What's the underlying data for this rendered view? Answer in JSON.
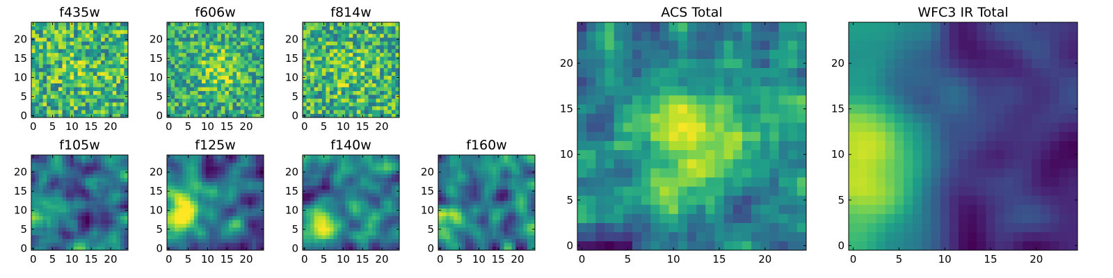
{
  "colormap": {
    "name": "viridis",
    "stops": [
      "#440154",
      "#482878",
      "#3e4989",
      "#31688e",
      "#26828e",
      "#1f9e89",
      "#35b779",
      "#6ece58",
      "#b5de2b",
      "#fde725"
    ]
  },
  "chart_data": [
    {
      "id": "f435w",
      "type": "heatmap",
      "title": "f435w",
      "grid": [
        25,
        25
      ],
      "xlim": [
        -0.5,
        24.5
      ],
      "ylim": [
        -0.5,
        24.5
      ],
      "xticks": [
        0,
        5,
        10,
        15,
        20
      ],
      "yticks": [
        0,
        5,
        10,
        15,
        20
      ],
      "pattern": "noise",
      "blob": [
        12,
        12
      ],
      "blob_strength": 0.15,
      "seed": 11
    },
    {
      "id": "f606w",
      "type": "heatmap",
      "title": "f606w",
      "grid": [
        25,
        25
      ],
      "xlim": [
        -0.5,
        24.5
      ],
      "ylim": [
        -0.5,
        24.5
      ],
      "xticks": [
        0,
        5,
        10,
        15,
        20
      ],
      "yticks": [
        0,
        5,
        10,
        15,
        20
      ],
      "pattern": "noise",
      "blob": [
        13,
        12
      ],
      "blob_strength": 0.4,
      "seed": 23
    },
    {
      "id": "f814w",
      "type": "heatmap",
      "title": "f814w",
      "grid": [
        25,
        25
      ],
      "xlim": [
        -0.5,
        24.5
      ],
      "ylim": [
        -0.5,
        24.5
      ],
      "xticks": [
        0,
        5,
        10,
        15,
        20
      ],
      "yticks": [
        0,
        5,
        10,
        15,
        20
      ],
      "pattern": "noise",
      "blob": [
        12,
        12
      ],
      "blob_strength": 0.2,
      "seed": 37
    },
    {
      "id": "f105w",
      "type": "heatmap",
      "title": "f105w",
      "grid": [
        25,
        25
      ],
      "xlim": [
        -0.5,
        24.5
      ],
      "ylim": [
        -0.5,
        24.5
      ],
      "xticks": [
        0,
        5,
        10,
        15,
        20
      ],
      "yticks": [
        0,
        5,
        10,
        15,
        20
      ],
      "pattern": "smooth",
      "blob": [
        1,
        8
      ],
      "blob_strength": 0.45,
      "seed": 41
    },
    {
      "id": "f125w",
      "type": "heatmap",
      "title": "f125w",
      "grid": [
        25,
        25
      ],
      "xlim": [
        -0.5,
        24.5
      ],
      "ylim": [
        -0.5,
        24.5
      ],
      "xticks": [
        0,
        5,
        10,
        15,
        20
      ],
      "yticks": [
        0,
        5,
        10,
        15,
        20
      ],
      "pattern": "smooth",
      "blob": [
        3,
        10
      ],
      "blob_strength": 0.5,
      "seed": 53
    },
    {
      "id": "f140w",
      "type": "heatmap",
      "title": "f140w",
      "grid": [
        25,
        25
      ],
      "xlim": [
        -0.5,
        24.5
      ],
      "ylim": [
        -0.5,
        24.5
      ],
      "xticks": [
        0,
        5,
        10,
        15,
        20
      ],
      "yticks": [
        0,
        5,
        10,
        15,
        20
      ],
      "pattern": "smooth",
      "blob": [
        1,
        5
      ],
      "blob_strength": 0.4,
      "seed": 67
    },
    {
      "id": "f160w",
      "type": "heatmap",
      "title": "f160w",
      "grid": [
        25,
        25
      ],
      "xlim": [
        -0.5,
        24.5
      ],
      "ylim": [
        -0.5,
        24.5
      ],
      "xticks": [
        0,
        5,
        10,
        15,
        20
      ],
      "yticks": [
        0,
        5,
        10,
        15,
        20
      ],
      "pattern": "smooth",
      "blob": [
        1,
        6
      ],
      "blob_strength": 0.45,
      "seed": 79
    },
    {
      "id": "acs-total",
      "type": "heatmap",
      "title": "ACS Total",
      "grid": [
        25,
        25
      ],
      "xlim": [
        -0.5,
        24.5
      ],
      "ylim": [
        -0.5,
        24.5
      ],
      "xticks": [
        0,
        5,
        10,
        15,
        20
      ],
      "yticks": [
        0,
        5,
        10,
        15,
        20
      ],
      "pattern": "medium",
      "blob": [
        12,
        12
      ],
      "blob_strength": 0.45,
      "seed": 97
    },
    {
      "id": "wfc3-ir-total",
      "type": "heatmap",
      "title": "WFC3 IR Total",
      "grid": [
        25,
        25
      ],
      "xlim": [
        -0.5,
        24.5
      ],
      "ylim": [
        -0.5,
        24.5
      ],
      "xticks": [
        0,
        5,
        10,
        15,
        20
      ],
      "yticks": [
        0,
        5,
        10,
        15,
        20
      ],
      "pattern": "ir",
      "blob": [
        1,
        8
      ],
      "blob_strength": 0.75,
      "seed": 101
    }
  ]
}
